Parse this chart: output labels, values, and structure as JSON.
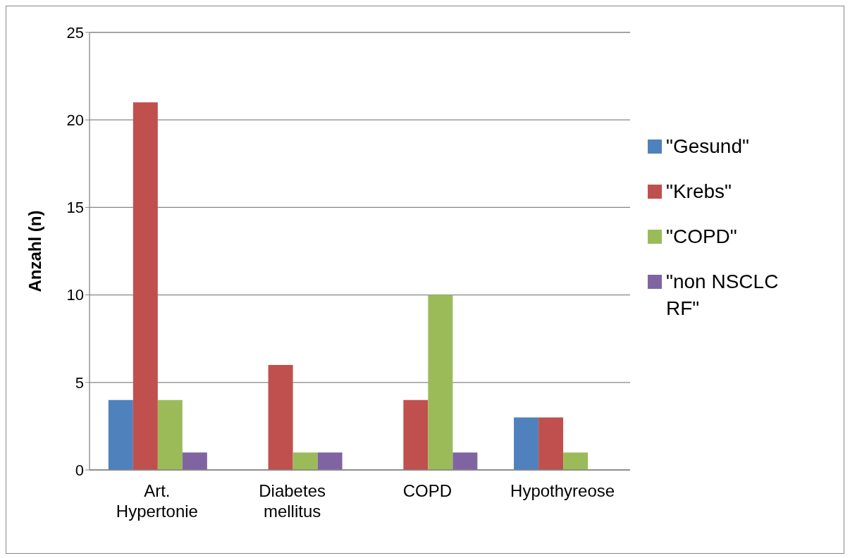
{
  "chart_data": {
    "type": "bar",
    "ylabel": "Anzahl (n)",
    "categories": [
      "Art. Hypertonie",
      "Diabetes mellitus",
      "COPD",
      "Hypothyreose"
    ],
    "series": [
      {
        "name": "\"Gesund\"",
        "color": "#4f81bd",
        "values": [
          4,
          0,
          0,
          3
        ]
      },
      {
        "name": "\"Krebs\"",
        "color": "#c0504d",
        "values": [
          21,
          6,
          4,
          3
        ]
      },
      {
        "name": "\"COPD\"",
        "color": "#9bbb59",
        "values": [
          4,
          1,
          10,
          1
        ]
      },
      {
        "name": "\"non NSCLC RF\"",
        "color": "#8064a2",
        "values": [
          1,
          1,
          1,
          0
        ]
      }
    ],
    "ylim": [
      0,
      25
    ],
    "yticks": [
      0,
      5,
      10,
      15,
      20,
      25
    ],
    "grid": "y",
    "legend": "right"
  }
}
